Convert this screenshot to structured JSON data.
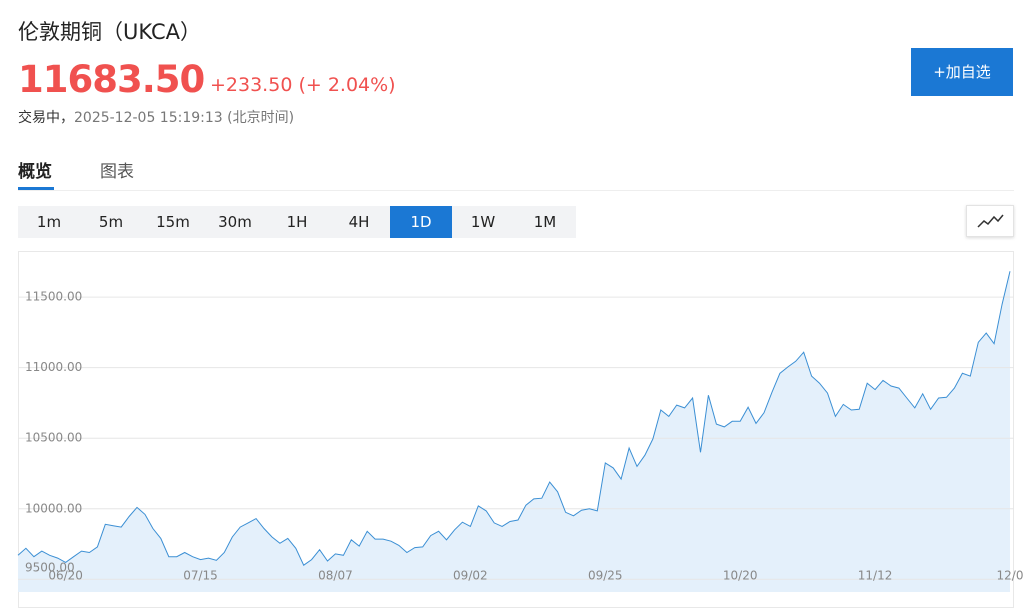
{
  "header": {
    "title": "伦敦期铜（UKCA）",
    "price": "11683.50",
    "change": "+233.50",
    "change_pct": "(+ 2.04%)",
    "status": "交易中，",
    "timestamp": "2025-12-05 15:19:13 (北京时间)",
    "watch_button": "+加自选"
  },
  "tabs": [
    "概览",
    "图表"
  ],
  "intervals": [
    "1m",
    "5m",
    "15m",
    "30m",
    "1H",
    "4H",
    "1D",
    "1W",
    "1M"
  ],
  "chart_data": {
    "type": "area",
    "color": "#3b8fd4",
    "fill": "#e4f0fb",
    "grid": true,
    "categories": [
      null,
      null,
      null,
      null,
      null,
      null,
      "06/20",
      null,
      null,
      null,
      null,
      null,
      null,
      null,
      null,
      null,
      null,
      null,
      null,
      null,
      null,
      null,
      null,
      "07/15",
      null,
      null,
      null,
      null,
      null,
      null,
      null,
      null,
      null,
      null,
      null,
      null,
      null,
      null,
      null,
      null,
      "08/07",
      null,
      null,
      null,
      null,
      null,
      null,
      null,
      null,
      null,
      null,
      null,
      null,
      null,
      null,
      null,
      null,
      "09/02",
      null,
      null,
      null,
      null,
      null,
      null,
      null,
      null,
      null,
      null,
      null,
      null,
      null,
      null,
      null,
      null,
      "09/25",
      null,
      null,
      null,
      null,
      null,
      null,
      null,
      null,
      null,
      null,
      null,
      null,
      null,
      null,
      null,
      null,
      "10/20",
      null,
      null,
      null,
      null,
      null,
      null,
      null,
      null,
      null,
      null,
      null,
      null,
      null,
      null,
      null,
      null,
      "11/12",
      null,
      null,
      null,
      null,
      null,
      null,
      null,
      null,
      null,
      null,
      null,
      null,
      null,
      null,
      null,
      null,
      "12/0"
    ],
    "values": [
      9670,
      9720,
      9660,
      9700,
      9670,
      9650,
      9620,
      9660,
      9700,
      9690,
      9730,
      9890,
      9880,
      9870,
      9945,
      10010,
      9960,
      9860,
      9790,
      9660,
      9660,
      9690,
      9660,
      9640,
      9650,
      9635,
      9690,
      9800,
      9870,
      9900,
      9930,
      9860,
      9800,
      9755,
      9790,
      9720,
      9600,
      9640,
      9710,
      9630,
      9680,
      9670,
      9780,
      9735,
      9840,
      9785,
      9785,
      9770,
      9740,
      9690,
      9725,
      9730,
      9810,
      9840,
      9780,
      9850,
      9905,
      9875,
      10020,
      9985,
      9900,
      9875,
      9910,
      9920,
      10025,
      10070,
      10075,
      10190,
      10120,
      9975,
      9950,
      9990,
      10000,
      9985,
      10325,
      10290,
      10210,
      10430,
      10300,
      10380,
      10495,
      10700,
      10655,
      10735,
      10715,
      10785,
      10400,
      10805,
      10600,
      10580,
      10620,
      10620,
      10720,
      10605,
      10680,
      10825,
      10960,
      11005,
      11045,
      11110,
      10940,
      10890,
      10820,
      10655,
      10740,
      10700,
      10705,
      10890,
      10845,
      10910,
      10870,
      10855,
      10785,
      10715,
      10815,
      10705,
      10785,
      10790,
      10855,
      10960,
      10940,
      11180,
      11245,
      11170,
      11450,
      11683.5
    ],
    "ylim": [
      9410,
      11820
    ],
    "yticks": [
      {
        "value": 9500,
        "label": "9500.00"
      },
      {
        "value": 10000,
        "label": "10000.00"
      },
      {
        "value": 10500,
        "label": "10500.00"
      },
      {
        "value": 11000,
        "label": "11000.00"
      },
      {
        "value": 11500,
        "label": "11500.00"
      }
    ]
  }
}
